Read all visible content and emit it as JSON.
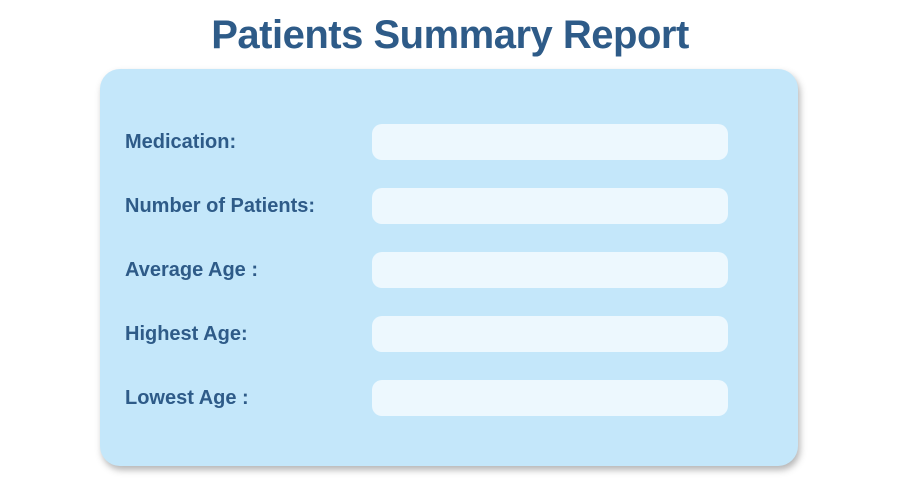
{
  "page": {
    "title": "Patients Summary Report"
  },
  "card": {
    "rows": [
      {
        "label": "Medication:",
        "value": ""
      },
      {
        "label": "Number of Patients:",
        "value": ""
      },
      {
        "label": "Average Age :",
        "value": ""
      },
      {
        "label": "Highest Age:",
        "value": ""
      },
      {
        "label": "Lowest Age :",
        "value": ""
      }
    ]
  },
  "colors": {
    "title_text": "#2e5b88",
    "label_text": "#2e5b88",
    "card_background": "#c4e7fa",
    "field_background": "#edf8fe",
    "page_background": "#ffffff"
  }
}
